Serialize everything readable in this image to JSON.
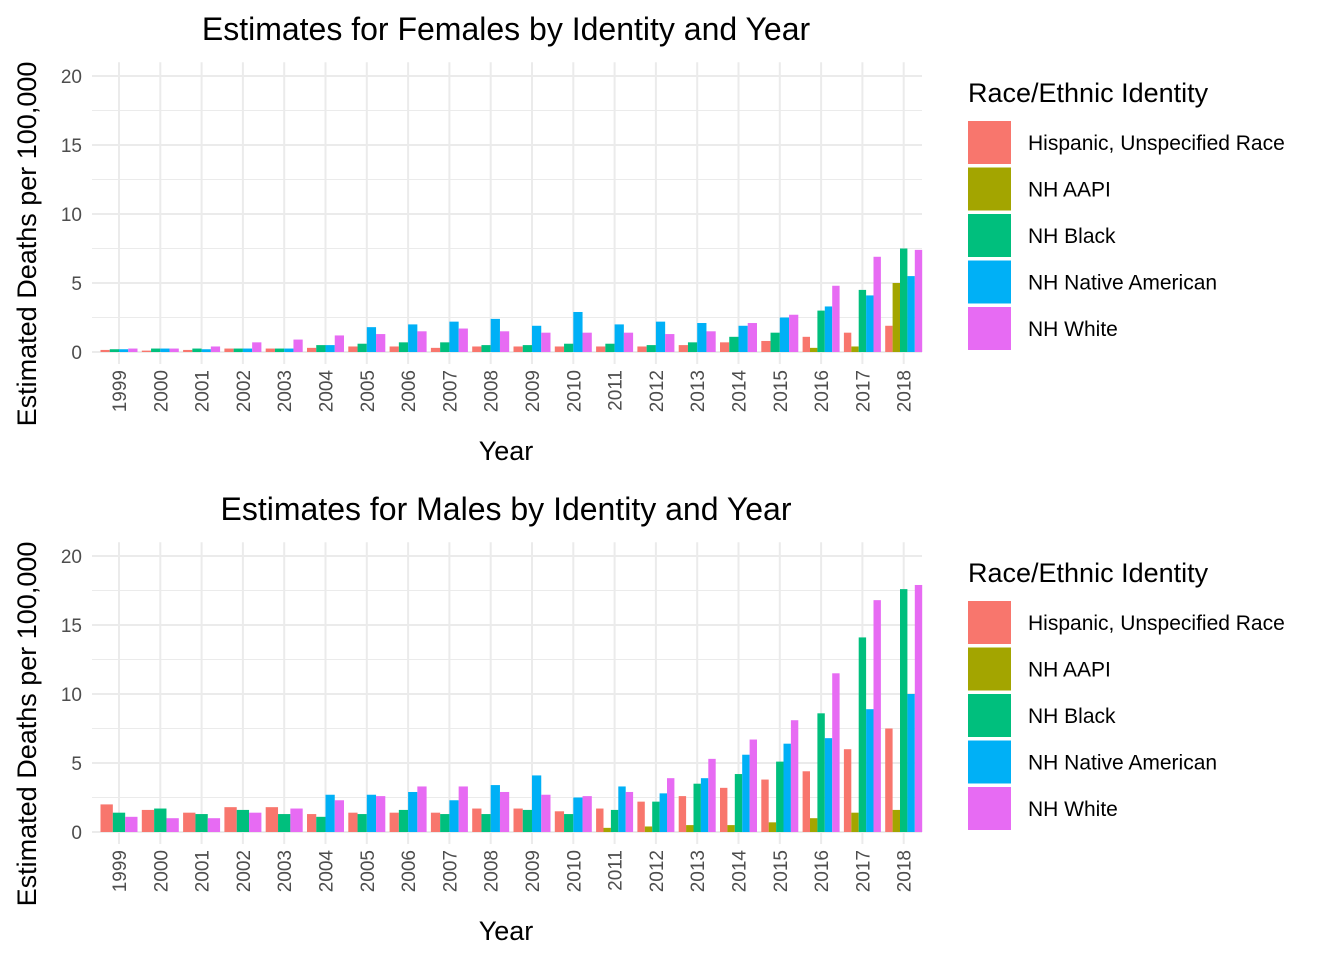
{
  "chart_data": [
    {
      "type": "bar",
      "title": "Estimates for Females by Identity and Year",
      "xlabel": "Year",
      "ylabel": "Estimated Deaths per 100,000",
      "ylim": [
        0,
        21
      ],
      "yticks": [
        "0",
        "5",
        "10",
        "15",
        "20"
      ],
      "categories": [
        "1999",
        "2000",
        "2001",
        "2002",
        "2003",
        "2004",
        "2005",
        "2006",
        "2007",
        "2008",
        "2009",
        "2010",
        "2011",
        "2012",
        "2013",
        "2014",
        "2015",
        "2016",
        "2017",
        "2018"
      ],
      "legend_title": "Race/Ethnic Identity",
      "legend_position": "right",
      "grid": true,
      "series": [
        {
          "name": "Hispanic, Unspecified Race",
          "color": "#F8766D",
          "values": [
            0.15,
            0.1,
            0.15,
            0.25,
            0.25,
            0.3,
            0.4,
            0.4,
            0.3,
            0.4,
            0.4,
            0.4,
            0.4,
            0.4,
            0.5,
            0.7,
            0.8,
            1.1,
            1.4,
            1.9
          ]
        },
        {
          "name": "NH AAPI",
          "color": "#A3A500",
          "values": [
            null,
            null,
            null,
            null,
            null,
            null,
            null,
            null,
            null,
            null,
            null,
            null,
            null,
            null,
            null,
            null,
            null,
            0.3,
            0.4,
            5.0
          ]
        },
        {
          "name": "NH Black",
          "color": "#00BF7D",
          "values": [
            0.2,
            0.25,
            0.25,
            0.25,
            0.25,
            0.5,
            0.6,
            0.7,
            0.7,
            0.5,
            0.5,
            0.6,
            0.6,
            0.5,
            0.7,
            1.1,
            1.4,
            3.0,
            4.5,
            7.5
          ]
        },
        {
          "name": "NH Native American",
          "color": "#00B0F6",
          "values": [
            0.2,
            0.25,
            0.2,
            0.25,
            0.25,
            0.5,
            1.8,
            2.0,
            2.2,
            2.4,
            1.9,
            2.9,
            2.0,
            2.2,
            2.1,
            1.9,
            2.5,
            3.3,
            4.1,
            5.5
          ]
        },
        {
          "name": "NH White",
          "color": "#E76BF3",
          "values": [
            0.25,
            0.25,
            0.4,
            0.7,
            0.9,
            1.2,
            1.3,
            1.5,
            1.7,
            1.5,
            1.4,
            1.4,
            1.4,
            1.3,
            1.5,
            2.1,
            2.7,
            4.8,
            6.9,
            7.4
          ]
        }
      ]
    },
    {
      "type": "bar",
      "title": "Estimates for Males by Identity and Year",
      "xlabel": "Year",
      "ylabel": "Estimated Deaths per 100,000",
      "ylim": [
        0,
        21
      ],
      "yticks": [
        "0",
        "5",
        "10",
        "15",
        "20"
      ],
      "categories": [
        "1999",
        "2000",
        "2001",
        "2002",
        "2003",
        "2004",
        "2005",
        "2006",
        "2007",
        "2008",
        "2009",
        "2010",
        "2011",
        "2012",
        "2013",
        "2014",
        "2015",
        "2016",
        "2017",
        "2018"
      ],
      "legend_title": "Race/Ethnic Identity",
      "legend_position": "right",
      "grid": true,
      "series": [
        {
          "name": "Hispanic, Unspecified Race",
          "color": "#F8766D",
          "values": [
            2.0,
            1.6,
            1.4,
            1.8,
            1.8,
            1.3,
            1.4,
            1.4,
            1.4,
            1.7,
            1.7,
            1.5,
            1.7,
            2.2,
            2.6,
            3.2,
            3.8,
            4.4,
            6.0,
            7.5
          ]
        },
        {
          "name": "NH AAPI",
          "color": "#A3A500",
          "values": [
            null,
            null,
            null,
            null,
            null,
            null,
            null,
            null,
            null,
            null,
            null,
            null,
            0.3,
            0.4,
            0.5,
            0.5,
            0.7,
            1.0,
            1.4,
            1.6
          ]
        },
        {
          "name": "NH Black",
          "color": "#00BF7D",
          "values": [
            1.4,
            1.7,
            1.3,
            1.6,
            1.3,
            1.1,
            1.3,
            1.6,
            1.3,
            1.3,
            1.6,
            1.3,
            1.6,
            2.2,
            3.5,
            4.2,
            5.1,
            8.6,
            14.1,
            17.6
          ]
        },
        {
          "name": "NH Native American",
          "color": "#00B0F6",
          "values": [
            null,
            null,
            null,
            null,
            null,
            2.7,
            2.7,
            2.9,
            2.3,
            3.4,
            4.1,
            2.5,
            3.3,
            2.8,
            3.9,
            5.6,
            6.4,
            6.8,
            8.9,
            10.0
          ]
        },
        {
          "name": "NH White",
          "color": "#E76BF3",
          "values": [
            1.1,
            1.0,
            1.0,
            1.4,
            1.7,
            2.3,
            2.6,
            3.3,
            3.3,
            2.9,
            2.7,
            2.6,
            2.9,
            3.9,
            5.3,
            6.7,
            8.1,
            11.5,
            16.8,
            17.9
          ]
        }
      ]
    }
  ]
}
